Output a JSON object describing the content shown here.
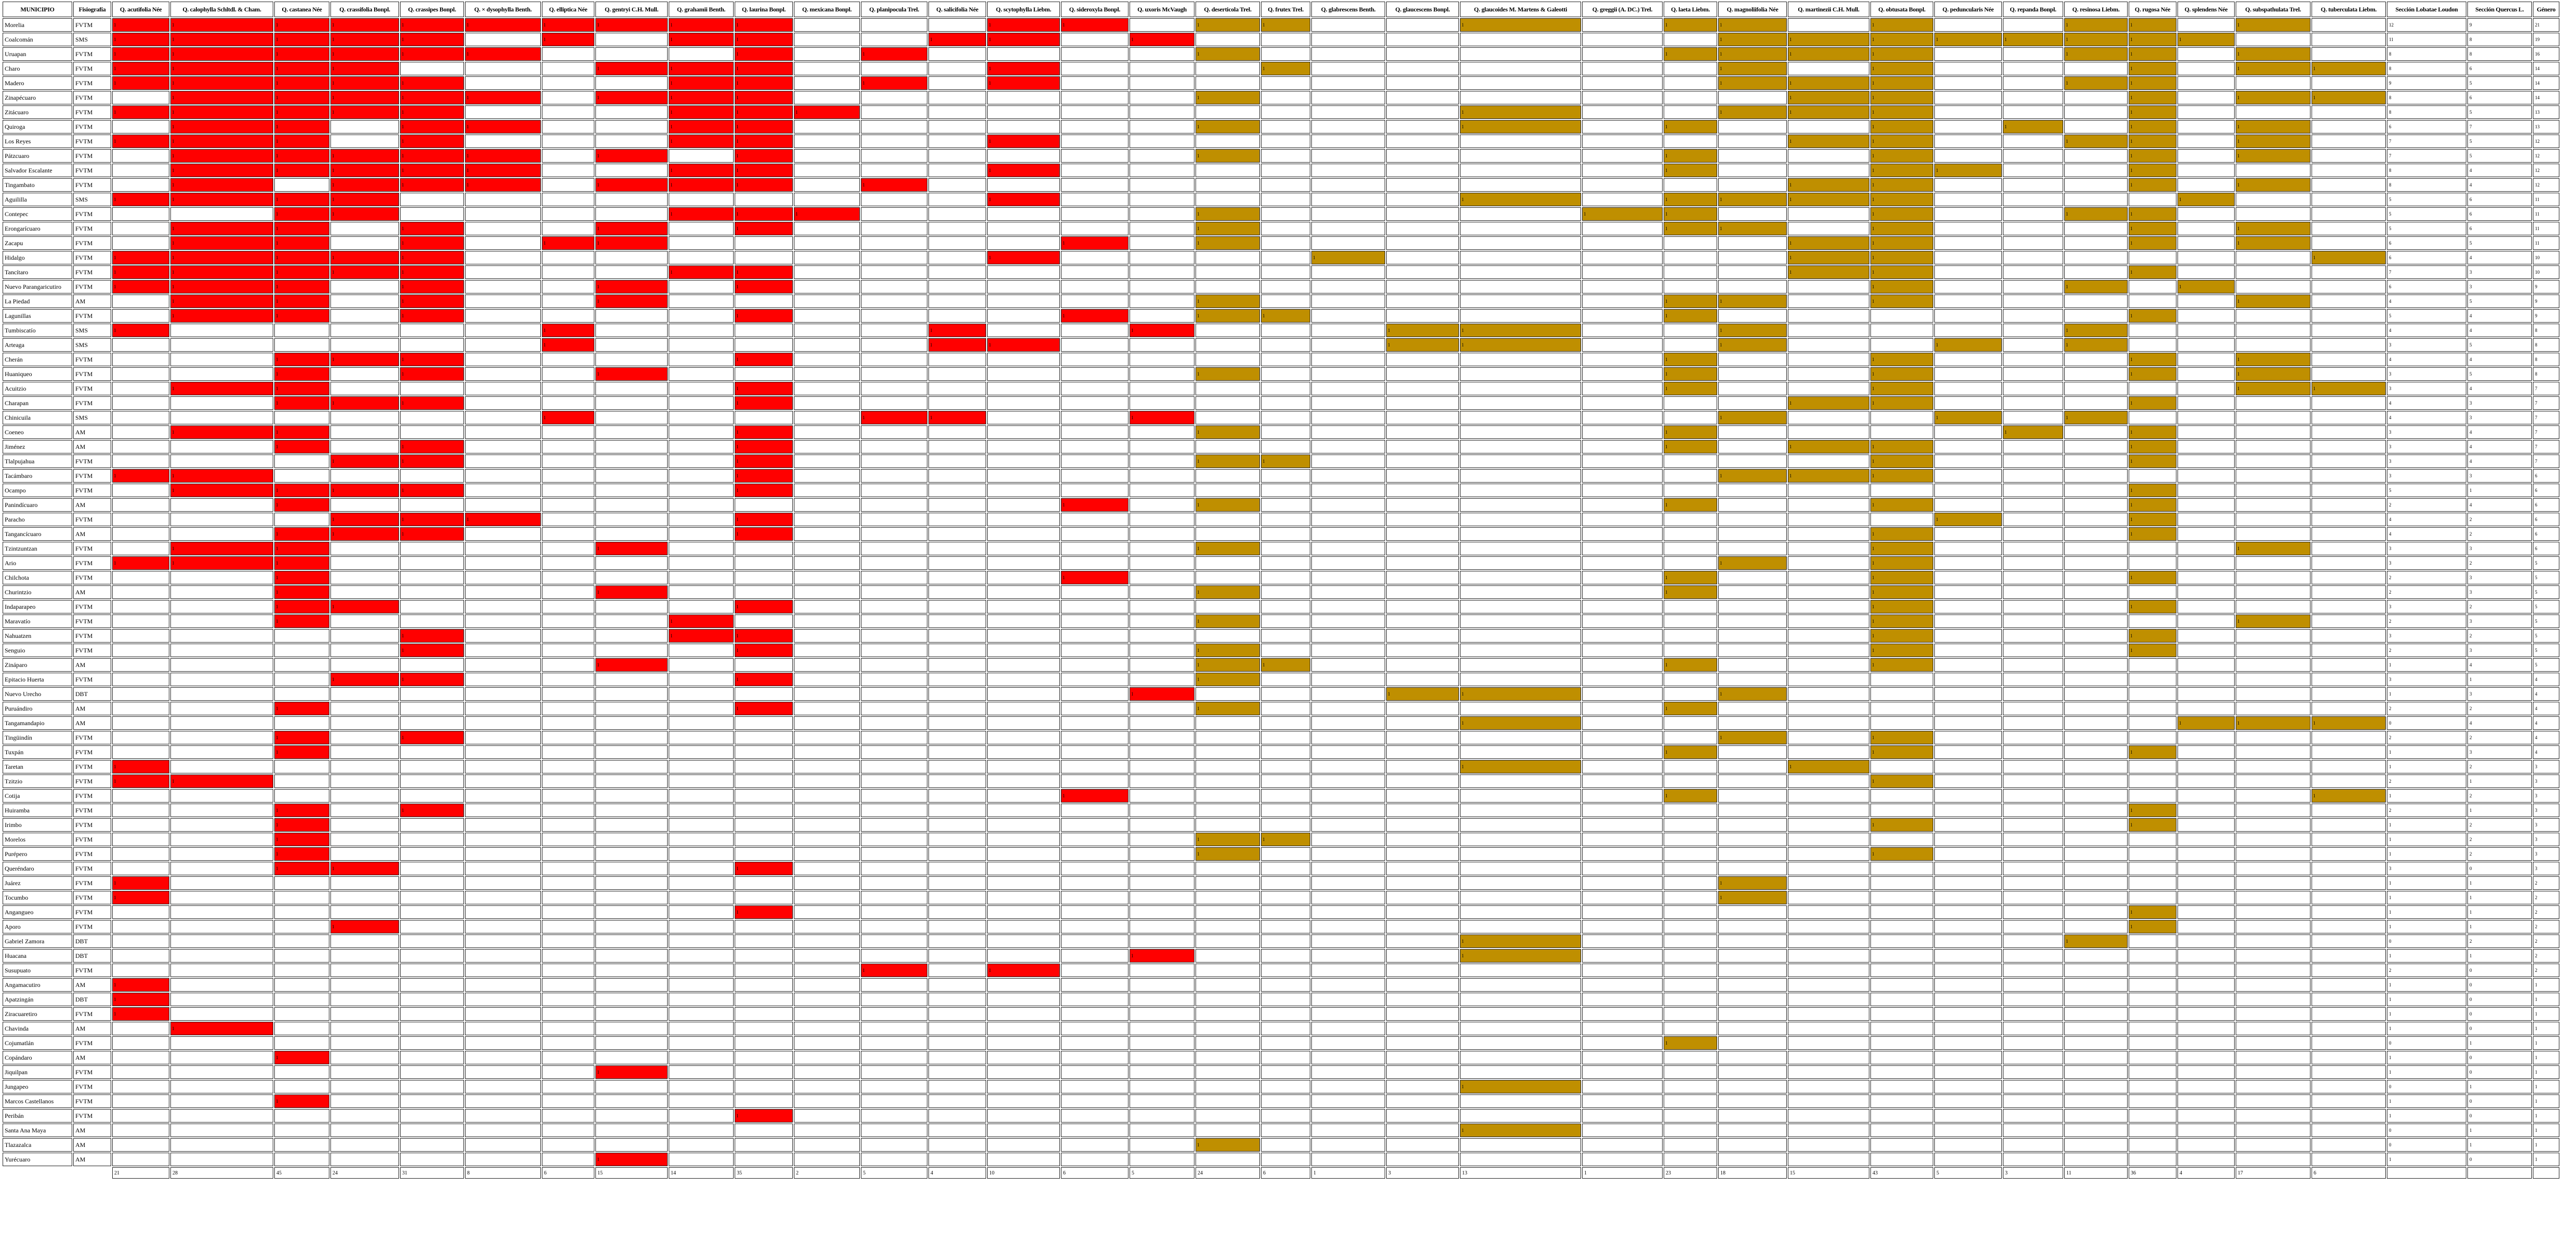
{
  "header": {
    "municipio": "MUNICIPIO",
    "fisiografia": "Fisiografía",
    "lobatae": [
      "Q. acutifolia Née",
      "Q. calophylla Schltdl. & Cham.",
      "Q. castanea Née",
      "Q. crassifolia Bonpl.",
      "Q. crassipes Bonpl.",
      "Q. × dysophylla Benth.",
      "Q. elliptica Née",
      "Q. gentryi C.H. Mull.",
      "Q. grahamii Benth.",
      "Q. laurina Bonpl.",
      "Q. mexicana Bonpl.",
      "Q. planipocula Trel.",
      "Q. salicifolia Née",
      "Q. scytophylla Liebm.",
      "Q. sideroxyla Bonpl.",
      "Q. uxoris McVaugh"
    ],
    "quercus": [
      "Q. deserticola Trel.",
      "Q. frutex Trel.",
      "Q. glabrescens Benth.",
      "Q. glaucescens Bonpl.",
      "Q. glaucoides M. Martens & Galeotti",
      "Q. greggii (A. DC.) Trel.",
      "Q. laeta Liebm.",
      "Q. magnoliifolia Née",
      "Q. martinezii C.H. Mull.",
      "Q. obtusata Bonpl.",
      "Q. peduncularis Née",
      "Q. repanda Bonpl.",
      "Q. resinosa Liebm.",
      "Q. rugosa Née",
      "Q. splendens Née",
      "Q. subspathulata Trel.",
      "Q. tuberculata Liebm."
    ],
    "summary": [
      "Sección Lobatae Loudon",
      "Sección Quercus L.",
      "Género"
    ]
  },
  "colors": {
    "lobatae": "#ff0000",
    "quercus": "#bf8f00"
  },
  "cell_value": "1",
  "rows": [
    [
      "Morelia",
      "FVTM",
      "1111111111000110",
      "11001011010011010",
      12,
      9,
      21
    ],
    [
      "Coalcomán",
      "SMS",
      "1111101011001101",
      "00000001111111100",
      11,
      8,
      19
    ],
    [
      "Uruapan",
      "FVTM",
      "1111110001010000",
      "10000011110011010",
      8,
      8,
      16
    ],
    [
      "Charo",
      "FVTM",
      "1111000111000100",
      "01000001010001011",
      8,
      6,
      14
    ],
    [
      "Madero",
      "FVTM",
      "1111100011010100",
      "00000001110011000",
      9,
      5,
      14
    ],
    [
      "Zinapécuaro",
      "FVTM",
      "0111110111000000",
      "10000000110001011",
      8,
      6,
      14
    ],
    [
      "Zitácuaro",
      "FVTM",
      "1111100011100000",
      "00001001110001000",
      8,
      5,
      13
    ],
    [
      "Quiroga",
      "FVTM",
      "0110110011000000",
      "10001010010101010",
      6,
      7,
      13
    ],
    [
      "Los Reyes",
      "FVTM",
      "1110100011000100",
      "00000000110011010",
      7,
      5,
      12
    ],
    [
      "Pátzcuaro",
      "FVTM",
      "0111110101000000",
      "10000010010001010",
      7,
      5,
      12
    ],
    [
      "Salvador Escalante",
      "FVTM",
      "0111110011000100",
      "00000010011001000",
      8,
      4,
      12
    ],
    [
      "Tingambato",
      "FVTM",
      "0101110111010000",
      "00000000110001010",
      8,
      4,
      12
    ],
    [
      "Aguililla",
      "SMS",
      "1111000000000100",
      "00001011110000100",
      5,
      6,
      11
    ],
    [
      "Contepec",
      "FVTM",
      "0011000011100000",
      "10000110010011000",
      5,
      6,
      11
    ],
    [
      "Erongarícuaro",
      "FVTM",
      "0110100101000000",
      "10000011010001010",
      5,
      6,
      11
    ],
    [
      "Zacapu",
      "FVTM",
      "0110101100000010",
      "10000000110001010",
      6,
      5,
      11
    ],
    [
      "Hidalgo",
      "FVTM",
      "1111100000000100",
      "00100000110000001",
      6,
      4,
      10
    ],
    [
      "Tancítaro",
      "FVTM",
      "1111100011000000",
      "00000000110001000",
      7,
      3,
      10
    ],
    [
      "Nuevo Parangaricutiro",
      "FVTM",
      "1110100101000000",
      "00000000010010100",
      6,
      3,
      9
    ],
    [
      "La Piedad",
      "AM",
      "0110100100000000",
      "10000011010000010",
      4,
      5,
      9
    ],
    [
      "Lagunillas",
      "FVTM",
      "0110100001000010",
      "11000010000001000",
      5,
      4,
      9
    ],
    [
      "Tumbiscatío",
      "SMS",
      "1000001000001001",
      "00011001000010000",
      4,
      4,
      8
    ],
    [
      "Arteaga",
      "SMS",
      "0000001000001100",
      "00011001001010000",
      3,
      5,
      8
    ],
    [
      "Cherán",
      "FVTM",
      "0011100001000000",
      "00000010010001010",
      4,
      4,
      8
    ],
    [
      "Huaniqueo",
      "FVTM",
      "0010100100000000",
      "10000010010001010",
      3,
      5,
      8
    ],
    [
      "Acuitzio",
      "FVTM",
      "0110000001000000",
      "00000010010000011",
      3,
      4,
      7
    ],
    [
      "Charapan",
      "FVTM",
      "0011100001000000",
      "00000000110001000",
      4,
      3,
      7
    ],
    [
      "Chinicuila",
      "SMS",
      "0000001000011001",
      "00000001001010000",
      4,
      3,
      7
    ],
    [
      "Coeneo",
      "AM",
      "0110000001000000",
      "10000010000101000",
      3,
      4,
      7
    ],
    [
      "Jiménez",
      "AM",
      "0010100001000000",
      "00000010110001000",
      3,
      4,
      7
    ],
    [
      "Tlalpujahua",
      "FVTM",
      "0001100001000000",
      "11000000010001000",
      3,
      4,
      7
    ],
    [
      "Tacámbaro",
      "FVTM",
      "1100000001000000",
      "00000001110000000",
      3,
      3,
      6
    ],
    [
      "Ocampo",
      "FVTM",
      "0111100001000000",
      "00000000000001000",
      5,
      1,
      6
    ],
    [
      "Panindícuaro",
      "AM",
      "0010000000000010",
      "10000010010001000",
      2,
      4,
      6
    ],
    [
      "Paracho",
      "FVTM",
      "0001110001000000",
      "00000000001001000",
      4,
      2,
      6
    ],
    [
      "Tangancícuaro",
      "AM",
      "0011100001000000",
      "00000000010001000",
      4,
      2,
      6
    ],
    [
      "Tzintzuntzan",
      "FVTM",
      "0110000100000000",
      "10000000010000010",
      3,
      3,
      6
    ],
    [
      "Ario",
      "FVTM",
      "1110000000000000",
      "00000001010000000",
      3,
      2,
      5
    ],
    [
      "Chilchota",
      "FVTM",
      "0010000000000010",
      "00000010010001000",
      2,
      3,
      5
    ],
    [
      "Churintzio",
      "AM",
      "0010000100000000",
      "10000010010000000",
      2,
      3,
      5
    ],
    [
      "Indaparapeo",
      "FVTM",
      "0011000001000000",
      "00000000010001000",
      3,
      2,
      5
    ],
    [
      "Maravatío",
      "FVTM",
      "0010000010000000",
      "10000000010000010",
      2,
      3,
      5
    ],
    [
      "Nahuatzen",
      "FVTM",
      "0000100011000000",
      "00000000010001000",
      3,
      2,
      5
    ],
    [
      "Senguio",
      "FVTM",
      "0000100001000000",
      "10000000010001000",
      2,
      3,
      5
    ],
    [
      "Zináparo",
      "AM",
      "0000000100000000",
      "11000010010000000",
      1,
      4,
      5
    ],
    [
      "Epitacio Huerta",
      "FVTM",
      "0001100001000000",
      "10000000000000000",
      3,
      1,
      4
    ],
    [
      "Nuevo Urecho",
      "DBT",
      "0000000000000001",
      "00011001000000000",
      1,
      3,
      4
    ],
    [
      "Puruándiro",
      "AM",
      "0010000001000000",
      "10000010000000000",
      2,
      2,
      4
    ],
    [
      "Tangamandapio",
      "AM",
      "0000000000000000",
      "00001000000000111",
      0,
      4,
      4
    ],
    [
      "Tingüindín",
      "FVTM",
      "0010100000000000",
      "00000001010000000",
      2,
      2,
      4
    ],
    [
      "Tuxpán",
      "FVTM",
      "0010000000000000",
      "00000010010001000",
      1,
      3,
      4
    ],
    [
      "Taretan",
      "FVTM",
      "1000000000000000",
      "00001000100000000",
      1,
      2,
      3
    ],
    [
      "Tzitzio",
      "FVTM",
      "1100000000000000",
      "00000000010000000",
      2,
      1,
      3
    ],
    [
      "Cotija",
      "FVTM",
      "0000000000000010",
      "00000010000000001",
      1,
      2,
      3
    ],
    [
      "Huiramba",
      "FVTM",
      "0010100000000000",
      "00000000000001000",
      2,
      1,
      3
    ],
    [
      "Irimbo",
      "FVTM",
      "0010000000000000",
      "00000000010001000",
      1,
      2,
      3
    ],
    [
      "Morelos",
      "FVTM",
      "0010000000000000",
      "11000000000000000",
      1,
      2,
      3
    ],
    [
      "Purépero",
      "FVTM",
      "0010000000000000",
      "10000000010000000",
      1,
      2,
      3
    ],
    [
      "Queréndaro",
      "FVTM",
      "0011000001000000",
      "00000000000000000",
      3,
      0,
      3
    ],
    [
      "Juárez",
      "FVTM",
      "1000000000000000",
      "00000001000000000",
      1,
      1,
      2
    ],
    [
      "Tocumbo",
      "FVTM",
      "1000000000000000",
      "00000001000000000",
      1,
      1,
      2
    ],
    [
      "Angangueo",
      "FVTM",
      "0000000001000000",
      "00000000000001000",
      1,
      1,
      2
    ],
    [
      "Aporo",
      "FVTM",
      "0001000000000000",
      "00000000000001000",
      1,
      1,
      2
    ],
    [
      "Gabriel Zamora",
      "DBT",
      "0000000000000000",
      "00001000000010000",
      0,
      2,
      2
    ],
    [
      "Huacana",
      "DBT",
      "0000000000000001",
      "00001000000000000",
      1,
      1,
      2
    ],
    [
      "Susupuato",
      "FVTM",
      "0000000000010100",
      "00000000000000000",
      2,
      0,
      2
    ],
    [
      "Angamacutiro",
      "AM",
      "1000000000000000",
      "00000000000000000",
      1,
      0,
      1
    ],
    [
      "Apatzingán",
      "DBT",
      "1000000000000000",
      "00000000000000000",
      1,
      0,
      1
    ],
    [
      "Ziracuaretiro",
      "FVTM",
      "1000000000000000",
      "00000000000000000",
      1,
      0,
      1
    ],
    [
      "Chavinda",
      "AM",
      "0100000000000000",
      "00000000000000000",
      1,
      0,
      1
    ],
    [
      "Cojumatlán",
      "FVTM",
      "0000000000000000",
      "00000010000000000",
      0,
      1,
      1
    ],
    [
      "Copándaro",
      "AM",
      "0010000000000000",
      "00000000000000000",
      1,
      0,
      1
    ],
    [
      "Jiquilpan",
      "FVTM",
      "0000000100000000",
      "00000000000000000",
      1,
      0,
      1
    ],
    [
      "Jungapeo",
      "FVTM",
      "0000000000000000",
      "00001000000000000",
      0,
      1,
      1
    ],
    [
      "Marcos Castellanos",
      "FVTM",
      "0010000000000000",
      "00000000000000000",
      1,
      0,
      1
    ],
    [
      "Peribán",
      "FVTM",
      "0000000001000000",
      "00000000000000000",
      1,
      0,
      1
    ],
    [
      "Santa Ana Maya",
      "AM",
      "0000000000000000",
      "00001000000000000",
      0,
      1,
      1
    ],
    [
      "Tlazazalca",
      "AM",
      "0000000000000000",
      "10000000000000000",
      0,
      1,
      1
    ],
    [
      "Yurécuaro",
      "AM",
      "0000000100000000",
      "00000000000000000",
      1,
      0,
      1
    ]
  ],
  "totals": {
    "lobatae": [
      21,
      28,
      45,
      24,
      31,
      8,
      6,
      15,
      14,
      35,
      2,
      5,
      4,
      10,
      6,
      5
    ],
    "quercus": [
      24,
      6,
      1,
      3,
      13,
      1,
      23,
      18,
      15,
      43,
      5,
      3,
      11,
      36,
      4,
      17,
      6
    ]
  }
}
